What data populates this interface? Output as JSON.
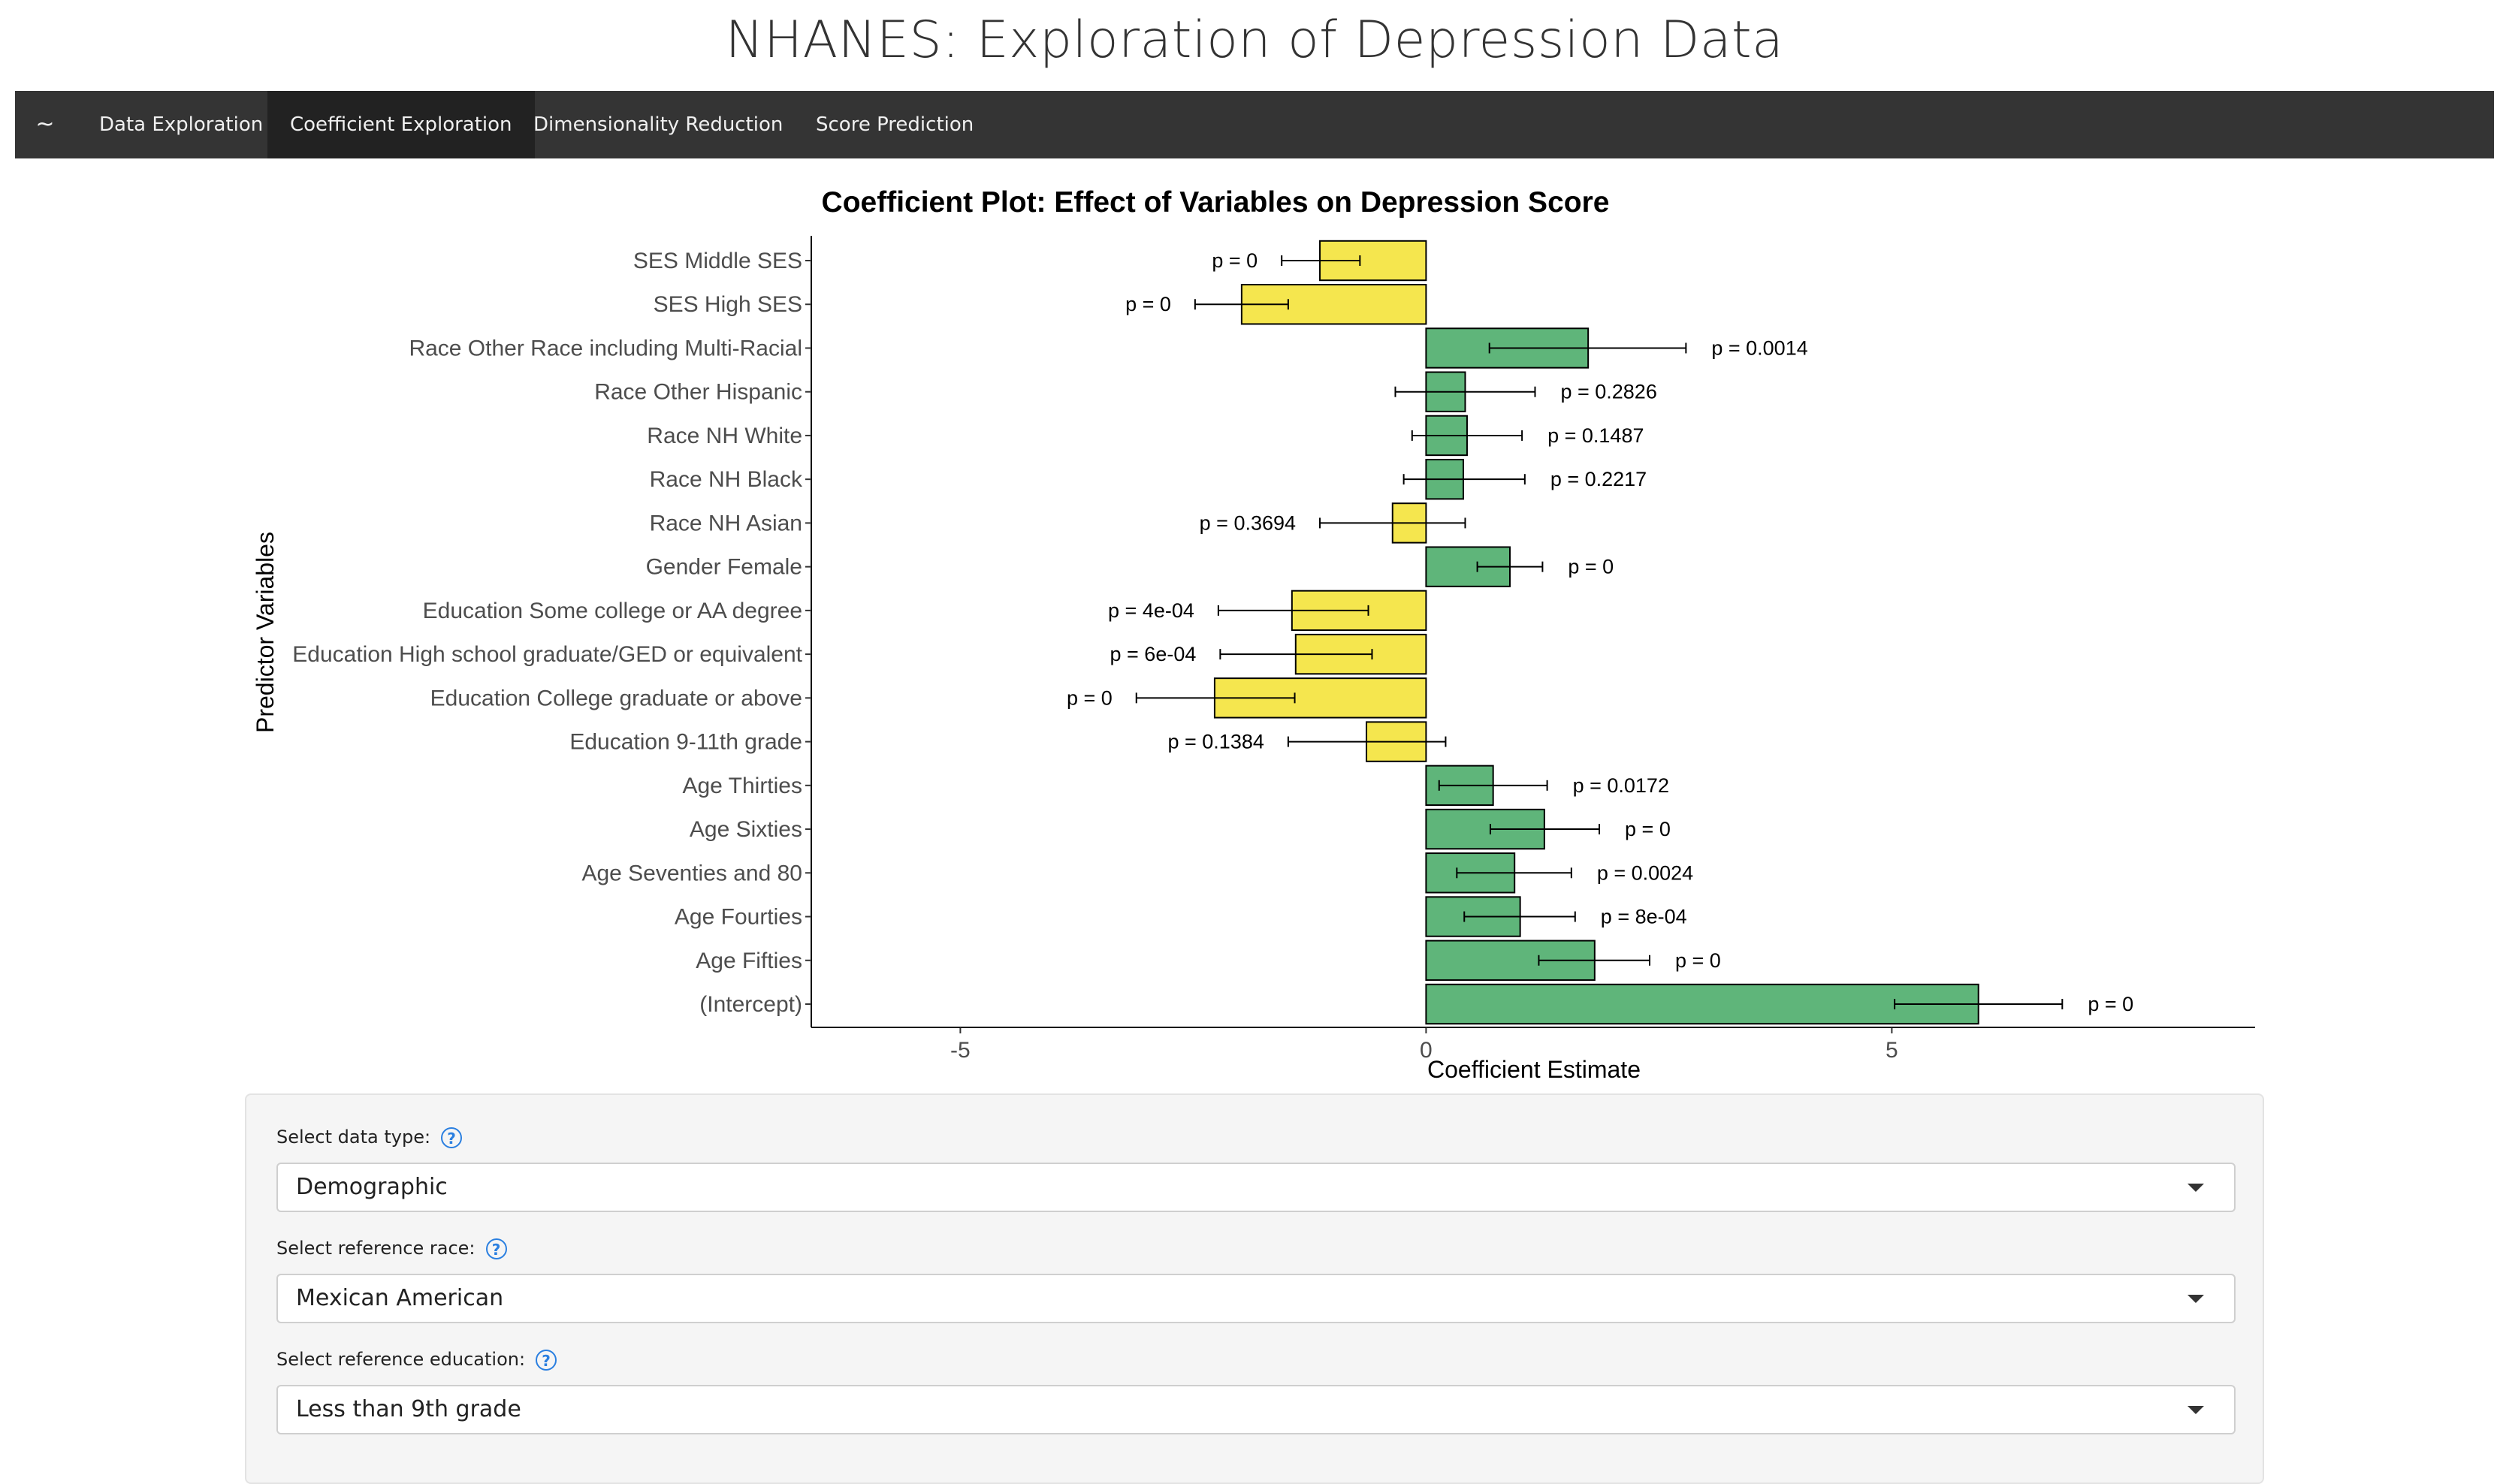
{
  "header": {
    "title": "NHANES: Exploration of Depression Data"
  },
  "nav": {
    "brand": "~",
    "tabs": [
      {
        "label": "Data Exploration",
        "active": false
      },
      {
        "label": "Coefficient Exploration",
        "active": true
      },
      {
        "label": "Dimensionality Reduction",
        "active": false
      },
      {
        "label": "Score Prediction",
        "active": false
      }
    ]
  },
  "chart_data": {
    "type": "bar",
    "orientation": "horizontal",
    "title": "Coefficient Plot: Effect of Variables on Depression Score",
    "xlabel": "Coefficient Estimate",
    "ylabel": "Predictor Variables",
    "xlim": [
      -6.6,
      8.9
    ],
    "xticks": [
      -5,
      0,
      5
    ],
    "grid": false,
    "legend": "none",
    "colors": {
      "positive": "#5fb57a",
      "negative": "#f5e64e",
      "outline": "#000000"
    },
    "categories": [
      "SES Middle SES",
      "SES High SES",
      "Race Other Race  including Multi-Racial",
      "Race Other Hispanic",
      "Race NH White",
      "Race NH Black",
      "Race NH Asian",
      "Gender Female",
      "Education Some college or AA degree",
      "Education High school graduate/GED or equivalent",
      "Education College graduate or above",
      "Education 9-11th grade",
      "Age Thirties",
      "Age Sixties",
      "Age Seventies and 80",
      "Age Fourties",
      "Age Fifties",
      "(Intercept)"
    ],
    "values": [
      -1.14,
      -1.98,
      1.74,
      0.42,
      0.44,
      0.4,
      -0.36,
      0.9,
      -1.44,
      -1.4,
      -2.27,
      -0.64,
      0.72,
      1.27,
      0.95,
      1.01,
      1.81,
      5.93
    ],
    "ci_low": [
      -1.55,
      -2.48,
      0.68,
      -0.33,
      -0.15,
      -0.24,
      -1.14,
      0.55,
      -2.23,
      -2.21,
      -3.11,
      -1.48,
      0.14,
      0.69,
      0.33,
      0.41,
      1.21,
      5.03
    ],
    "ci_high": [
      -0.71,
      -1.48,
      2.79,
      1.17,
      1.03,
      1.06,
      0.42,
      1.25,
      -0.62,
      -0.58,
      -1.41,
      0.21,
      1.3,
      1.86,
      1.56,
      1.6,
      2.4,
      6.83
    ],
    "p_labels": [
      "p = 0",
      "p = 0",
      "p = 0.0014",
      "p = 0.2826",
      "p = 0.1487",
      "p = 0.2217",
      "p = 0.3694",
      "p = 0",
      "p = 4e-04",
      "p = 6e-04",
      "p = 0",
      "p = 0.1384",
      "p = 0.0172",
      "p = 0",
      "p = 0.0024",
      "p = 8e-04",
      "p = 0",
      "p = 0"
    ]
  },
  "controls": [
    {
      "label": "Select data type:",
      "value": "Demographic",
      "help_icon": "question-circle-icon"
    },
    {
      "label": "Select reference race:",
      "value": "Mexican American",
      "help_icon": "question-circle-icon"
    },
    {
      "label": "Select reference education:",
      "value": "Less than 9th grade",
      "help_icon": "question-circle-icon"
    }
  ]
}
